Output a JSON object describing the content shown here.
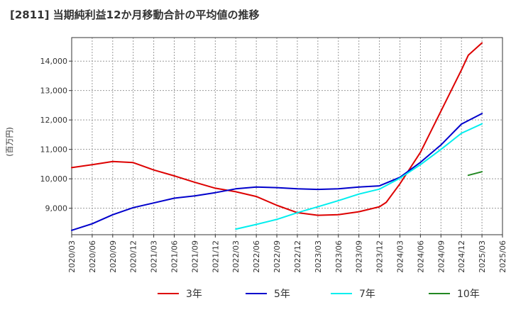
{
  "chart_data": {
    "type": "line",
    "title": "[2811]  当期純利益12か月移動合計の平均値の推移",
    "ylabel": "(百万円)",
    "xlabel": "",
    "ylim": [
      8100,
      14800
    ],
    "y_ticks": [
      9000,
      10000,
      11000,
      12000,
      13000,
      14000
    ],
    "y_tick_labels": [
      "9,000",
      "10,000",
      "11,000",
      "12,000",
      "13,000",
      "14,000"
    ],
    "x_ticks": [
      "2020/03",
      "2020/06",
      "2020/09",
      "2020/12",
      "2021/03",
      "2021/06",
      "2021/09",
      "2021/12",
      "2022/03",
      "2022/06",
      "2022/09",
      "2022/12",
      "2023/03",
      "2023/06",
      "2023/09",
      "2023/12",
      "2024/03",
      "2024/06",
      "2024/09",
      "2024/12",
      "2025/03",
      "2025/06"
    ],
    "grid": true,
    "legend_position": "bottom",
    "series": [
      {
        "name": "3年",
        "color": "#dd0000",
        "x": [
          "2020/03",
          "2020/06",
          "2020/09",
          "2020/12",
          "2021/03",
          "2021/06",
          "2021/09",
          "2021/12",
          "2022/03",
          "2022/06",
          "2022/09",
          "2022/12",
          "2023/03",
          "2023/06",
          "2023/09",
          "2023/12",
          "2024/01",
          "2024/03",
          "2024/06",
          "2024/09",
          "2024/12",
          "2025/01",
          "2025/03"
        ],
        "values": [
          10380,
          10480,
          10590,
          10550,
          10300,
          10100,
          9880,
          9680,
          9560,
          9400,
          9100,
          8850,
          8760,
          8780,
          8880,
          9050,
          9200,
          9830,
          10900,
          12300,
          13700,
          14200,
          14620
        ]
      },
      {
        "name": "5年",
        "color": "#0000cc",
        "x": [
          "2020/03",
          "2020/06",
          "2020/09",
          "2020/12",
          "2021/03",
          "2021/06",
          "2021/09",
          "2021/12",
          "2022/03",
          "2022/06",
          "2022/09",
          "2022/12",
          "2023/03",
          "2023/06",
          "2023/09",
          "2023/12",
          "2024/03",
          "2024/06",
          "2024/09",
          "2024/12",
          "2025/03"
        ],
        "values": [
          8250,
          8470,
          8780,
          9020,
          9180,
          9340,
          9420,
          9530,
          9660,
          9720,
          9700,
          9660,
          9640,
          9660,
          9720,
          9760,
          10050,
          10560,
          11150,
          11860,
          12220
        ]
      },
      {
        "name": "7年",
        "color": "#00eeee",
        "x": [
          "2022/03",
          "2022/06",
          "2022/09",
          "2022/12",
          "2023/03",
          "2023/06",
          "2023/09",
          "2023/12",
          "2024/03",
          "2024/06",
          "2024/09",
          "2024/12",
          "2025/03"
        ],
        "values": [
          8290,
          8450,
          8620,
          8850,
          9050,
          9260,
          9480,
          9650,
          10020,
          10480,
          11000,
          11550,
          11870
        ]
      },
      {
        "name": "10年",
        "color": "#228822",
        "x": [
          "2025/01",
          "2025/03"
        ],
        "values": [
          10120,
          10240
        ]
      }
    ]
  }
}
